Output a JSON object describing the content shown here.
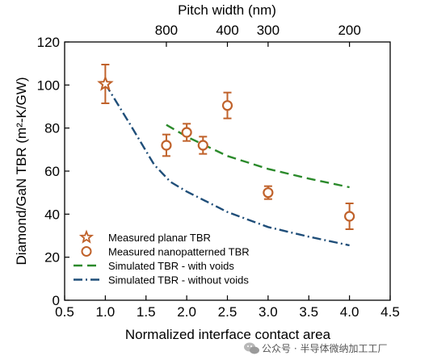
{
  "chart_data": {
    "type": "scatter",
    "xlabel": "Normalized interface contact area",
    "ylabel": "Diamond/GaN TBR (m²-K/GW)",
    "top_axis_label": "Pitch width (nm)",
    "xlim": [
      0.5,
      4.5
    ],
    "ylim": [
      0,
      120
    ],
    "x_ticks": [
      "0.5",
      "1.0",
      "1.5",
      "2.0",
      "2.5",
      "3.0",
      "3.5",
      "4.0",
      "4.5"
    ],
    "y_ticks": [
      "0",
      "20",
      "40",
      "60",
      "80",
      "100",
      "120"
    ],
    "top_ticks": [
      {
        "label": "800",
        "x": 1.75
      },
      {
        "label": "400",
        "x": 2.5
      },
      {
        "label": "300",
        "x": 3.0
      },
      {
        "label": "200",
        "x": 4.0
      }
    ],
    "grid": false,
    "legend_position": "bottom-left",
    "series": [
      {
        "name": "Measured planar TBR",
        "kind": "scatter",
        "marker": "star",
        "color": "#c0622b",
        "points": [
          {
            "x": 1.0,
            "y": 100.5,
            "err": 9
          }
        ]
      },
      {
        "name": "Measured nanopatterned TBR",
        "kind": "scatter",
        "marker": "circle",
        "color": "#c0622b",
        "points": [
          {
            "x": 1.75,
            "y": 72,
            "err": 5
          },
          {
            "x": 2.0,
            "y": 78,
            "err": 4
          },
          {
            "x": 2.2,
            "y": 72,
            "err": 4
          },
          {
            "x": 2.5,
            "y": 90.5,
            "err": 6
          },
          {
            "x": 3.0,
            "y": 50,
            "err": 3
          },
          {
            "x": 4.0,
            "y": 39,
            "err": 6
          }
        ]
      },
      {
        "name": "Simulated TBR - with voids",
        "kind": "line",
        "style": "dashed",
        "color": "#2b8a2b",
        "points": [
          {
            "x": 1.75,
            "y": 81.5
          },
          {
            "x": 2.0,
            "y": 76
          },
          {
            "x": 2.5,
            "y": 67
          },
          {
            "x": 3.0,
            "y": 61
          },
          {
            "x": 3.5,
            "y": 56.5
          },
          {
            "x": 4.0,
            "y": 52.5
          }
        ]
      },
      {
        "name": "Simulated TBR - without voids",
        "kind": "line",
        "style": "dashdot",
        "color": "#1f4e79",
        "points": [
          {
            "x": 1.0,
            "y": 100.5
          },
          {
            "x": 1.3,
            "y": 82
          },
          {
            "x": 1.6,
            "y": 63
          },
          {
            "x": 1.8,
            "y": 55
          },
          {
            "x": 2.0,
            "y": 50.5
          },
          {
            "x": 2.5,
            "y": 41
          },
          {
            "x": 3.0,
            "y": 34
          },
          {
            "x": 3.5,
            "y": 29.5
          },
          {
            "x": 4.0,
            "y": 25.5
          }
        ]
      }
    ]
  },
  "watermark": {
    "icon": "wechat-icon",
    "text": "公众号 · 半导体微纳加工工厂"
  }
}
